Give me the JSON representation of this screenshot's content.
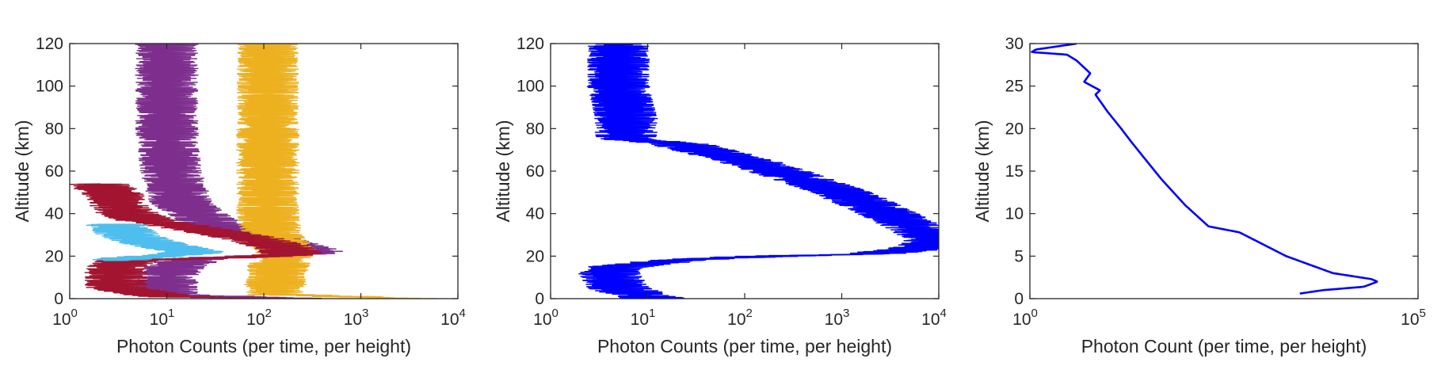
{
  "chart_data": [
    {
      "type": "line",
      "xscale": "log",
      "xlim": [
        1,
        10000
      ],
      "ylim": [
        0,
        120
      ],
      "x_ticks": [
        {
          "base": "10",
          "exp": "0"
        },
        {
          "base": "10",
          "exp": "1"
        },
        {
          "base": "10",
          "exp": "2"
        },
        {
          "base": "10",
          "exp": "3"
        },
        {
          "base": "10",
          "exp": "4"
        }
      ],
      "y_ticks": [
        "0",
        "20",
        "40",
        "60",
        "80",
        "100",
        "120"
      ],
      "xlabel": "Photon Counts (per time, per height)",
      "ylabel": "Altitude (km)",
      "grid": false,
      "series": [
        {
          "color": "#7e2f8e",
          "style": "noisy",
          "points": [
            [
              10,
              120
            ],
            [
              10,
              100
            ],
            [
              10,
              80
            ],
            [
              11,
              60
            ],
            [
              14,
              45
            ],
            [
              30,
              35
            ],
            [
              120,
              28
            ],
            [
              300,
              23
            ],
            [
              380,
              22
            ],
            [
              250,
              21
            ],
            [
              80,
              20
            ],
            [
              20,
              19
            ],
            [
              12,
              15
            ],
            [
              10,
              10
            ],
            [
              10,
              2
            ],
            [
              100,
              0.5
            ],
            [
              300,
              0
            ]
          ]
        },
        {
          "color": "#edb120",
          "style": "noisy",
          "points": [
            [
              110,
              120
            ],
            [
              110,
              100
            ],
            [
              110,
              80
            ],
            [
              110,
              60
            ],
            [
              110,
              40
            ],
            [
              120,
              30
            ],
            [
              150,
              25
            ],
            [
              175,
              22
            ],
            [
              160,
              20
            ],
            [
              140,
              15
            ],
            [
              130,
              5
            ],
            [
              130,
              2
            ],
            [
              1500,
              0.5
            ],
            [
              3000,
              0
            ]
          ]
        },
        {
          "color": "#a2142f",
          "style": "noisy",
          "points": [
            [
              2,
              54
            ],
            [
              3,
              48
            ],
            [
              3,
              45
            ],
            [
              4,
              40
            ],
            [
              6,
              37
            ],
            [
              20,
              33
            ],
            [
              80,
              28
            ],
            [
              160,
              24
            ],
            [
              200,
              21
            ],
            [
              120,
              20
            ],
            [
              30,
              19
            ],
            [
              4,
              18
            ],
            [
              3,
              15
            ],
            [
              3,
              5
            ],
            [
              10,
              1
            ],
            [
              100,
              0
            ]
          ]
        },
        {
          "color": "#4dbeee",
          "style": "noisy",
          "points": [
            [
              3,
              35
            ],
            [
              4,
              30
            ],
            [
              6,
              27
            ],
            [
              9,
              25
            ],
            [
              15,
              23
            ],
            [
              20,
              22
            ],
            [
              15,
              21
            ],
            [
              8,
              20
            ],
            [
              4,
              19
            ],
            [
              3,
              18
            ]
          ]
        }
      ]
    },
    {
      "type": "line",
      "xscale": "log",
      "xlim": [
        1,
        10000
      ],
      "ylim": [
        0,
        120
      ],
      "x_ticks": [
        {
          "base": "10",
          "exp": "0"
        },
        {
          "base": "10",
          "exp": "1"
        },
        {
          "base": "10",
          "exp": "2"
        },
        {
          "base": "10",
          "exp": "3"
        },
        {
          "base": "10",
          "exp": "4"
        }
      ],
      "y_ticks": [
        "0",
        "20",
        "40",
        "60",
        "80",
        "100",
        "120"
      ],
      "xlabel": "Photon Counts (per time, per height)",
      "ylabel": "Altitude (km)",
      "grid": false,
      "series": [
        {
          "color": "#0000ff",
          "style": "noisy",
          "points": [
            [
              5,
              120
            ],
            [
              5,
              100
            ],
            [
              6,
              85
            ],
            [
              6,
              75
            ],
            [
              20,
              73
            ],
            [
              100,
              65
            ],
            [
              300,
              58
            ],
            [
              1000,
              50
            ],
            [
              3000,
              40
            ],
            [
              6000,
              33
            ],
            [
              8500,
              29
            ],
            [
              9000,
              27
            ],
            [
              8000,
              25
            ],
            [
              5000,
              23
            ],
            [
              2000,
              21
            ],
            [
              200,
              20
            ],
            [
              50,
              19
            ],
            [
              20,
              18
            ],
            [
              5,
              15
            ],
            [
              4,
              12
            ],
            [
              5,
              5
            ],
            [
              8,
              2
            ],
            [
              12,
              0
            ]
          ]
        }
      ]
    },
    {
      "type": "line",
      "xscale": "log",
      "xlim": [
        1,
        100000
      ],
      "ylim": [
        0,
        30
      ],
      "x_ticks": [
        {
          "base": "10",
          "exp": "0"
        },
        {
          "base": "10",
          "exp": "5"
        }
      ],
      "y_ticks": [
        "0",
        "5",
        "10",
        "15",
        "20",
        "25",
        "30"
      ],
      "xlabel": "Photon Count (per time, per height)",
      "ylabel": "Altitude (km)",
      "grid": false,
      "series": [
        {
          "color": "#0000ff",
          "style": "smooth",
          "points": [
            [
              4,
              30
            ],
            [
              1.2,
              29.3
            ],
            [
              1.05,
              29
            ],
            [
              3,
              28.7
            ],
            [
              4,
              28
            ],
            [
              6,
              26.5
            ],
            [
              5,
              25.5
            ],
            [
              8,
              24.5
            ],
            [
              7,
              24
            ],
            [
              10,
              22
            ],
            [
              15,
              20
            ],
            [
              20,
              18.5
            ],
            [
              30,
              16.5
            ],
            [
              50,
              14
            ],
            [
              100,
              11
            ],
            [
              200,
              8.5
            ],
            [
              500,
              7.8
            ],
            [
              2000,
              5
            ],
            [
              8000,
              3
            ],
            [
              25000,
              2.3
            ],
            [
              30000,
              2
            ],
            [
              20000,
              1.4
            ],
            [
              6000,
              1
            ],
            [
              3000,
              0.6
            ]
          ]
        }
      ]
    }
  ]
}
